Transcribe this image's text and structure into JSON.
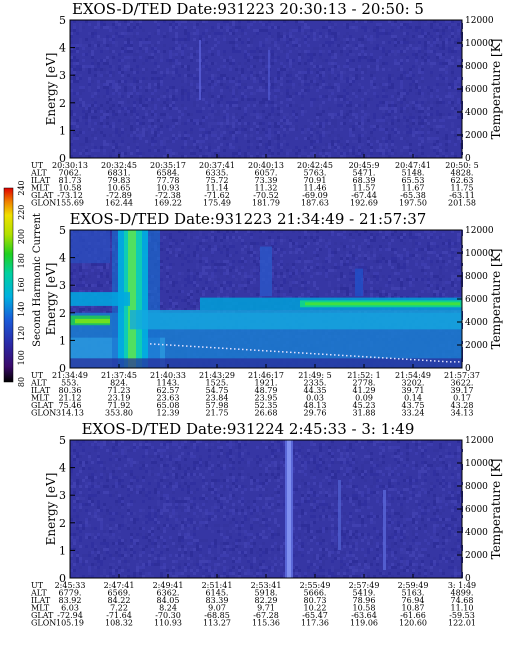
{
  "chart_data": [
    {
      "type": "heatmap",
      "title": "EXOS-D/TED   Date:931223  20:30:13 - 20:50: 5",
      "ylabel": "Energy [eV]",
      "y2label": "Temperature [K]",
      "ylim": [
        0,
        5
      ],
      "y2lim": [
        0,
        12000
      ],
      "yticks": [
        "0",
        "1",
        "2",
        "3",
        "4",
        "5"
      ],
      "y2ticks": [
        "0",
        "2000",
        "4000",
        "6000",
        "8000",
        "10000",
        "12000"
      ],
      "row_labels": [
        "UT",
        "ALT",
        "ILAT",
        "MLT",
        "GLAT",
        "GLON"
      ],
      "columns": [
        [
          "20:30:13",
          "7062.",
          "81.73",
          "10.58",
          "-73.12",
          "155.69"
        ],
        [
          "20:32:45",
          "6831.",
          "79.83",
          "10.65",
          "-72.89",
          "162.44"
        ],
        [
          "20:35:17",
          "6584.",
          "77.78",
          "10.93",
          "-72.38",
          "169.22"
        ],
        [
          "20:37:41",
          "6335.",
          "75.72",
          "11.14",
          "-71.62",
          "175.49"
        ],
        [
          "20:40:13",
          "6057.",
          "73.39",
          "11.32",
          "-70.52",
          "181.79"
        ],
        [
          "20:42:45",
          "5763.",
          "70.91",
          "11.46",
          "-69.09",
          "187.63"
        ],
        [
          "20:45:9",
          "5471.",
          "68.39",
          "11.57",
          "-67.44",
          "192.69"
        ],
        [
          "20:47:41",
          "5148.",
          "65.53",
          "11.67",
          "-65.38",
          "197.50"
        ],
        [
          "20:50: 5",
          "4828.",
          "62.63",
          "11.75",
          "-63.11",
          "201.58"
        ]
      ]
    },
    {
      "type": "heatmap",
      "title": "EXOS-D/TED   Date:931223  21:34:49 - 21:57:37",
      "ylabel": "Energy [eV]",
      "y2label": "Temperature [K]",
      "ylim": [
        0,
        5
      ],
      "y2lim": [
        0,
        12000
      ],
      "yticks": [
        "0",
        "1",
        "2",
        "3",
        "4",
        "5"
      ],
      "y2ticks": [
        "0",
        "2000",
        "4000",
        "6000",
        "8000",
        "10000",
        "12000"
      ],
      "colorbar": {
        "label": "Second Harmonic Current",
        "ticks": [
          "80",
          "100",
          "120",
          "140",
          "160",
          "180",
          "200",
          "220",
          "240"
        ],
        "range": [
          80,
          240
        ]
      },
      "row_labels": [
        "UT",
        "ALT",
        "ILAT",
        "MLT",
        "GLAT",
        "GLON"
      ],
      "columns": [
        [
          "21:34:49",
          "553.",
          "80.36",
          "21.12",
          "75.46",
          "314.13"
        ],
        [
          "21:37:45",
          "824.",
          "71.23",
          "23.19",
          "71.92",
          "353.80"
        ],
        [
          "21:40:33",
          "1143.",
          "62.57",
          "23.63",
          "65.08",
          "12.39"
        ],
        [
          "21:43:29",
          "1525.",
          "54.75",
          "23.84",
          "57.98",
          "21.75"
        ],
        [
          "21:46:17",
          "1921.",
          "48.79",
          "23.95",
          "52.35",
          "26.68"
        ],
        [
          "21:49: 5",
          "2335.",
          "44.35",
          "0.03",
          "48.13",
          "29.76"
        ],
        [
          "21:52: 1",
          "2778.",
          "41.29",
          "0.09",
          "45.23",
          "31.88"
        ],
        [
          "21:54:49",
          "3202.",
          "39.71",
          "0.14",
          "43.75",
          "33.24"
        ],
        [
          "21:57:37",
          "3622.",
          "39.17",
          "0.17",
          "43.28",
          "34.13"
        ]
      ]
    },
    {
      "type": "heatmap",
      "title": "EXOS-D/TED   Date:931224  2:45:33 - 3: 1:49",
      "ylabel": "Energy [eV]",
      "y2label": "Temperature [K]",
      "ylim": [
        0,
        5
      ],
      "y2lim": [
        0,
        12000
      ],
      "yticks": [
        "0",
        "1",
        "2",
        "3",
        "4",
        "5"
      ],
      "y2ticks": [
        "0",
        "2000",
        "4000",
        "6000",
        "8000",
        "10000",
        "12000"
      ],
      "row_labels": [
        "UT",
        "ALT",
        "ILAT",
        "MLT",
        "GLAT",
        "GLON"
      ],
      "columns": [
        [
          "2:45:33",
          "6779.",
          "83.92",
          "6.03",
          "-72.94",
          "105.19"
        ],
        [
          "2:47:41",
          "6569.",
          "84.22",
          "7.22",
          "-71.64",
          "108.32"
        ],
        [
          "2:49:41",
          "6362.",
          "84.05",
          "8.24",
          "-70.30",
          "110.93"
        ],
        [
          "2:51:41",
          "6145.",
          "83.39",
          "9.07",
          "-68.85",
          "113.27"
        ],
        [
          "2:53:41",
          "5918.",
          "82.29",
          "9.71",
          "-67.28",
          "115.36"
        ],
        [
          "2:55:49",
          "5666.",
          "80.73",
          "10.22",
          "-65.47",
          "117.36"
        ],
        [
          "2:57:49",
          "5419.",
          "78.96",
          "10.58",
          "-63.64",
          "119.06"
        ],
        [
          "2:59:49",
          "5163.",
          "76.94",
          "10.87",
          "-61.66",
          "120.60"
        ],
        [
          "3: 1:49",
          "4899.",
          "74.68",
          "11.10",
          "-59.53",
          "122.01"
        ]
      ]
    }
  ]
}
